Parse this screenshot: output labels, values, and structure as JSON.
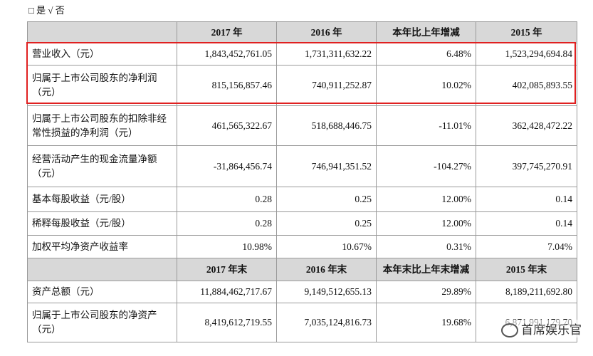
{
  "option_line": "□ 是 √ 否",
  "table": {
    "header": [
      "",
      "2017 年",
      "2016 年",
      "本年比上年增减",
      "2015 年"
    ],
    "rows": [
      [
        "营业收入（元）",
        "1,843,452,761.05",
        "1,731,311,632.22",
        "6.48%",
        "1,523,294,694.84"
      ],
      [
        "归属于上市公司股东的净利润（元）",
        "815,156,857.46",
        "740,911,252.87",
        "10.02%",
        "402,085,893.55"
      ],
      [
        "归属于上市公司股东的扣除非经常性损益的净利润（元）",
        "461,565,322.67",
        "518,688,446.75",
        "-11.01%",
        "362,428,472.22"
      ],
      [
        "经营活动产生的现金流量净额（元）",
        "-31,864,456.74",
        "746,941,351.52",
        "-104.27%",
        "397,745,270.91"
      ],
      [
        "基本每股收益（元/股）",
        "0.28",
        "0.25",
        "12.00%",
        "0.14"
      ],
      [
        "稀释每股收益（元/股）",
        "0.28",
        "0.25",
        "12.00%",
        "0.14"
      ],
      [
        "加权平均净资产收益率",
        "10.98%",
        "10.67%",
        "0.31%",
        "7.04%"
      ]
    ],
    "header2": [
      "",
      "2017 年末",
      "2016 年末",
      "本年末比上年末增减",
      "2015 年末"
    ],
    "rows2": [
      [
        "资产总额（元）",
        "11,884,462,717.67",
        "9,149,512,655.13",
        "29.89%",
        "8,189,211,692.80"
      ],
      [
        "归属于上市公司股东的净资产（元）",
        "8,419,612,719.55",
        "7,035,124,816.73",
        "19.68%",
        "6,871,991,179.70"
      ]
    ]
  },
  "watermark": "首席娱乐官"
}
